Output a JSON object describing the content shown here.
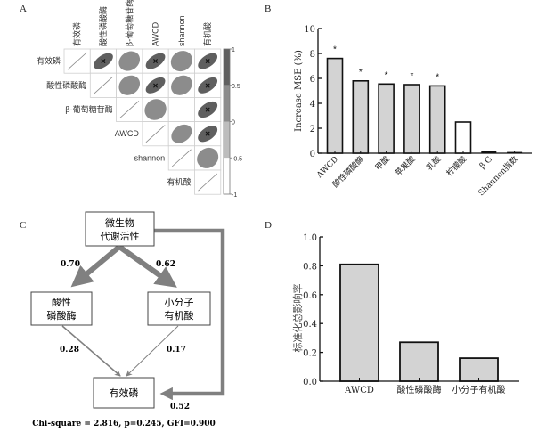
{
  "panels": {
    "a": {
      "label": "A",
      "variables": [
        "有效磷",
        "酸性磷酸酶",
        "β-葡萄糖苷酶",
        "AWCD",
        "shannon",
        "有机酸"
      ],
      "colorbar_ticks": [
        "1",
        "0.5",
        "0",
        "-0.5",
        "-1"
      ],
      "colorbar_colors": [
        "#5f5f5f",
        "#8c8c8c",
        "#bdbdbd",
        "#ffffff"
      ],
      "cells": [
        {
          "row": 0,
          "col": 1,
          "r": 0.8,
          "sig": true
        },
        {
          "row": 0,
          "col": 2,
          "r": 0.3,
          "sig": false
        },
        {
          "row": 0,
          "col": 3,
          "r": 0.8,
          "sig": true
        },
        {
          "row": 0,
          "col": 4,
          "r": 0.2,
          "sig": false
        },
        {
          "row": 0,
          "col": 5,
          "r": 0.8,
          "sig": true
        },
        {
          "row": 1,
          "col": 2,
          "r": 0.3,
          "sig": false
        },
        {
          "row": 1,
          "col": 3,
          "r": 0.8,
          "sig": true
        },
        {
          "row": 1,
          "col": 4,
          "r": 0.3,
          "sig": false
        },
        {
          "row": 1,
          "col": 5,
          "r": 0.8,
          "sig": true
        },
        {
          "row": 2,
          "col": 3,
          "r": 0.15,
          "sig": false
        },
        {
          "row": 2,
          "col": 5,
          "r": 0.75,
          "sig": true
        },
        {
          "row": 3,
          "col": 4,
          "r": 0.45,
          "sig": false
        },
        {
          "row": 3,
          "col": 5,
          "r": 0.75,
          "sig": true
        },
        {
          "row": 4,
          "col": 5,
          "r": 0.2,
          "sig": false
        }
      ],
      "sig_marker": "×"
    },
    "b": {
      "label": "B"
    },
    "c": {
      "label": "C",
      "nodes": {
        "top": [
          "微生物",
          "代谢活性"
        ],
        "left": [
          "酸性",
          "磷酸酶"
        ],
        "right": [
          "小分子",
          "有机酸"
        ],
        "bottom": [
          "有效磷"
        ]
      },
      "paths": {
        "top_left": "0.70",
        "top_right": "0.62",
        "left_bottom": "0.28",
        "right_bottom": "0.17",
        "top_bottom": "0.52"
      },
      "fit_stats": "Chi-square = 2.816, p=0.245, GFI=0.900"
    },
    "d": {
      "label": "D"
    }
  },
  "chart_data": [
    {
      "type": "bar",
      "title": "",
      "xlabel": "",
      "ylabel": "Increase MSE (%)",
      "ylim": [
        0,
        10
      ],
      "yticks": [
        "0",
        "2",
        "4",
        "6",
        "8",
        "10"
      ],
      "categories": [
        "AWCD",
        "酸性磷酸酶",
        "甲酸",
        "苹果酸",
        "乳酸",
        "柠檬酸",
        "β G",
        "Shannon指数"
      ],
      "values": [
        7.6,
        5.8,
        5.55,
        5.5,
        5.4,
        2.5,
        0.2,
        0.1
      ],
      "significant": [
        true,
        true,
        true,
        true,
        true,
        false,
        false,
        false
      ],
      "sig_marker": "*",
      "fill_sig": "#d3d3d3",
      "fill_nonsig": "#ffffff"
    },
    {
      "type": "bar",
      "title": "",
      "xlabel": "",
      "ylabel": "标准化总影响率",
      "ylim": [
        0,
        1.0
      ],
      "yticks": [
        "0.0",
        "0.2",
        "0.4",
        "0.6",
        "0.8",
        "1.0"
      ],
      "categories": [
        "AWCD",
        "酸性磷酸酶",
        "小分子有机酸"
      ],
      "values": [
        0.81,
        0.27,
        0.16
      ],
      "fill": "#d3d3d3"
    }
  ]
}
